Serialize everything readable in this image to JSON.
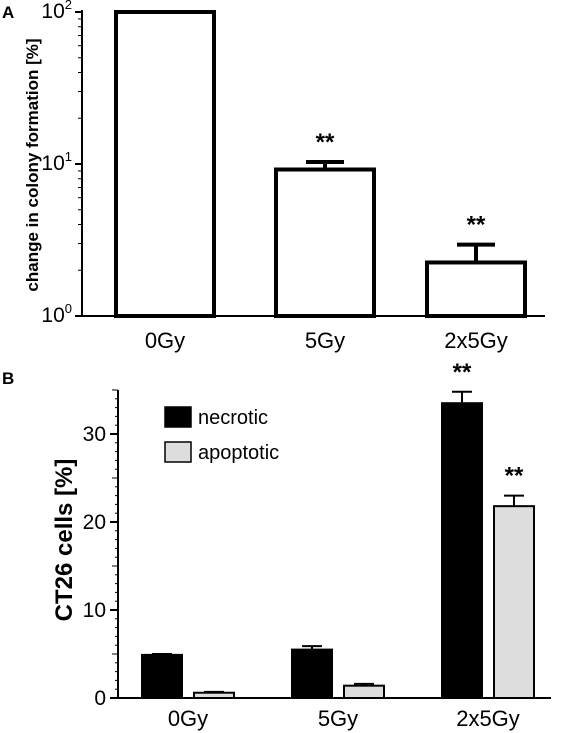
{
  "chart_data": [
    {
      "panel": "A",
      "type": "bar",
      "categories": [
        "0Gy",
        "5Gy",
        "2x5Gy"
      ],
      "values": [
        100,
        9.2,
        2.25
      ],
      "errors_upper": [
        100,
        10.3,
        2.95
      ],
      "annotations": [
        "",
        "**",
        "**"
      ],
      "ylabel": "change in colony formation [%]",
      "yscale": "log",
      "ylim": [
        1,
        100
      ],
      "yticks": [
        {
          "base": "10",
          "exp": "0",
          "value": 1
        },
        {
          "base": "10",
          "exp": "1",
          "value": 10
        },
        {
          "base": "10",
          "exp": "2",
          "value": 100
        }
      ],
      "bar_fill": "#ffffff",
      "bar_stroke": "#000000"
    },
    {
      "panel": "B",
      "type": "bar",
      "categories": [
        "0Gy",
        "5Gy",
        "2x5Gy"
      ],
      "ylabel": "CT26 cells [%]",
      "ylim": [
        0,
        35
      ],
      "yticks": [
        "0",
        "10",
        "20",
        "30"
      ],
      "legend_position": "top-left",
      "series": [
        {
          "name": "necrotic",
          "color": "#000000",
          "values": [
            4.9,
            5.5,
            33.5
          ],
          "errors_upper": [
            5.0,
            5.9,
            34.8
          ],
          "annotations": [
            "",
            "",
            "**"
          ]
        },
        {
          "name": "apoptotic",
          "color": "#dddddd",
          "values": [
            0.6,
            1.4,
            21.8
          ],
          "errors_upper": [
            0.7,
            1.6,
            23.0
          ],
          "annotations": [
            "",
            "",
            "**"
          ]
        }
      ]
    }
  ]
}
